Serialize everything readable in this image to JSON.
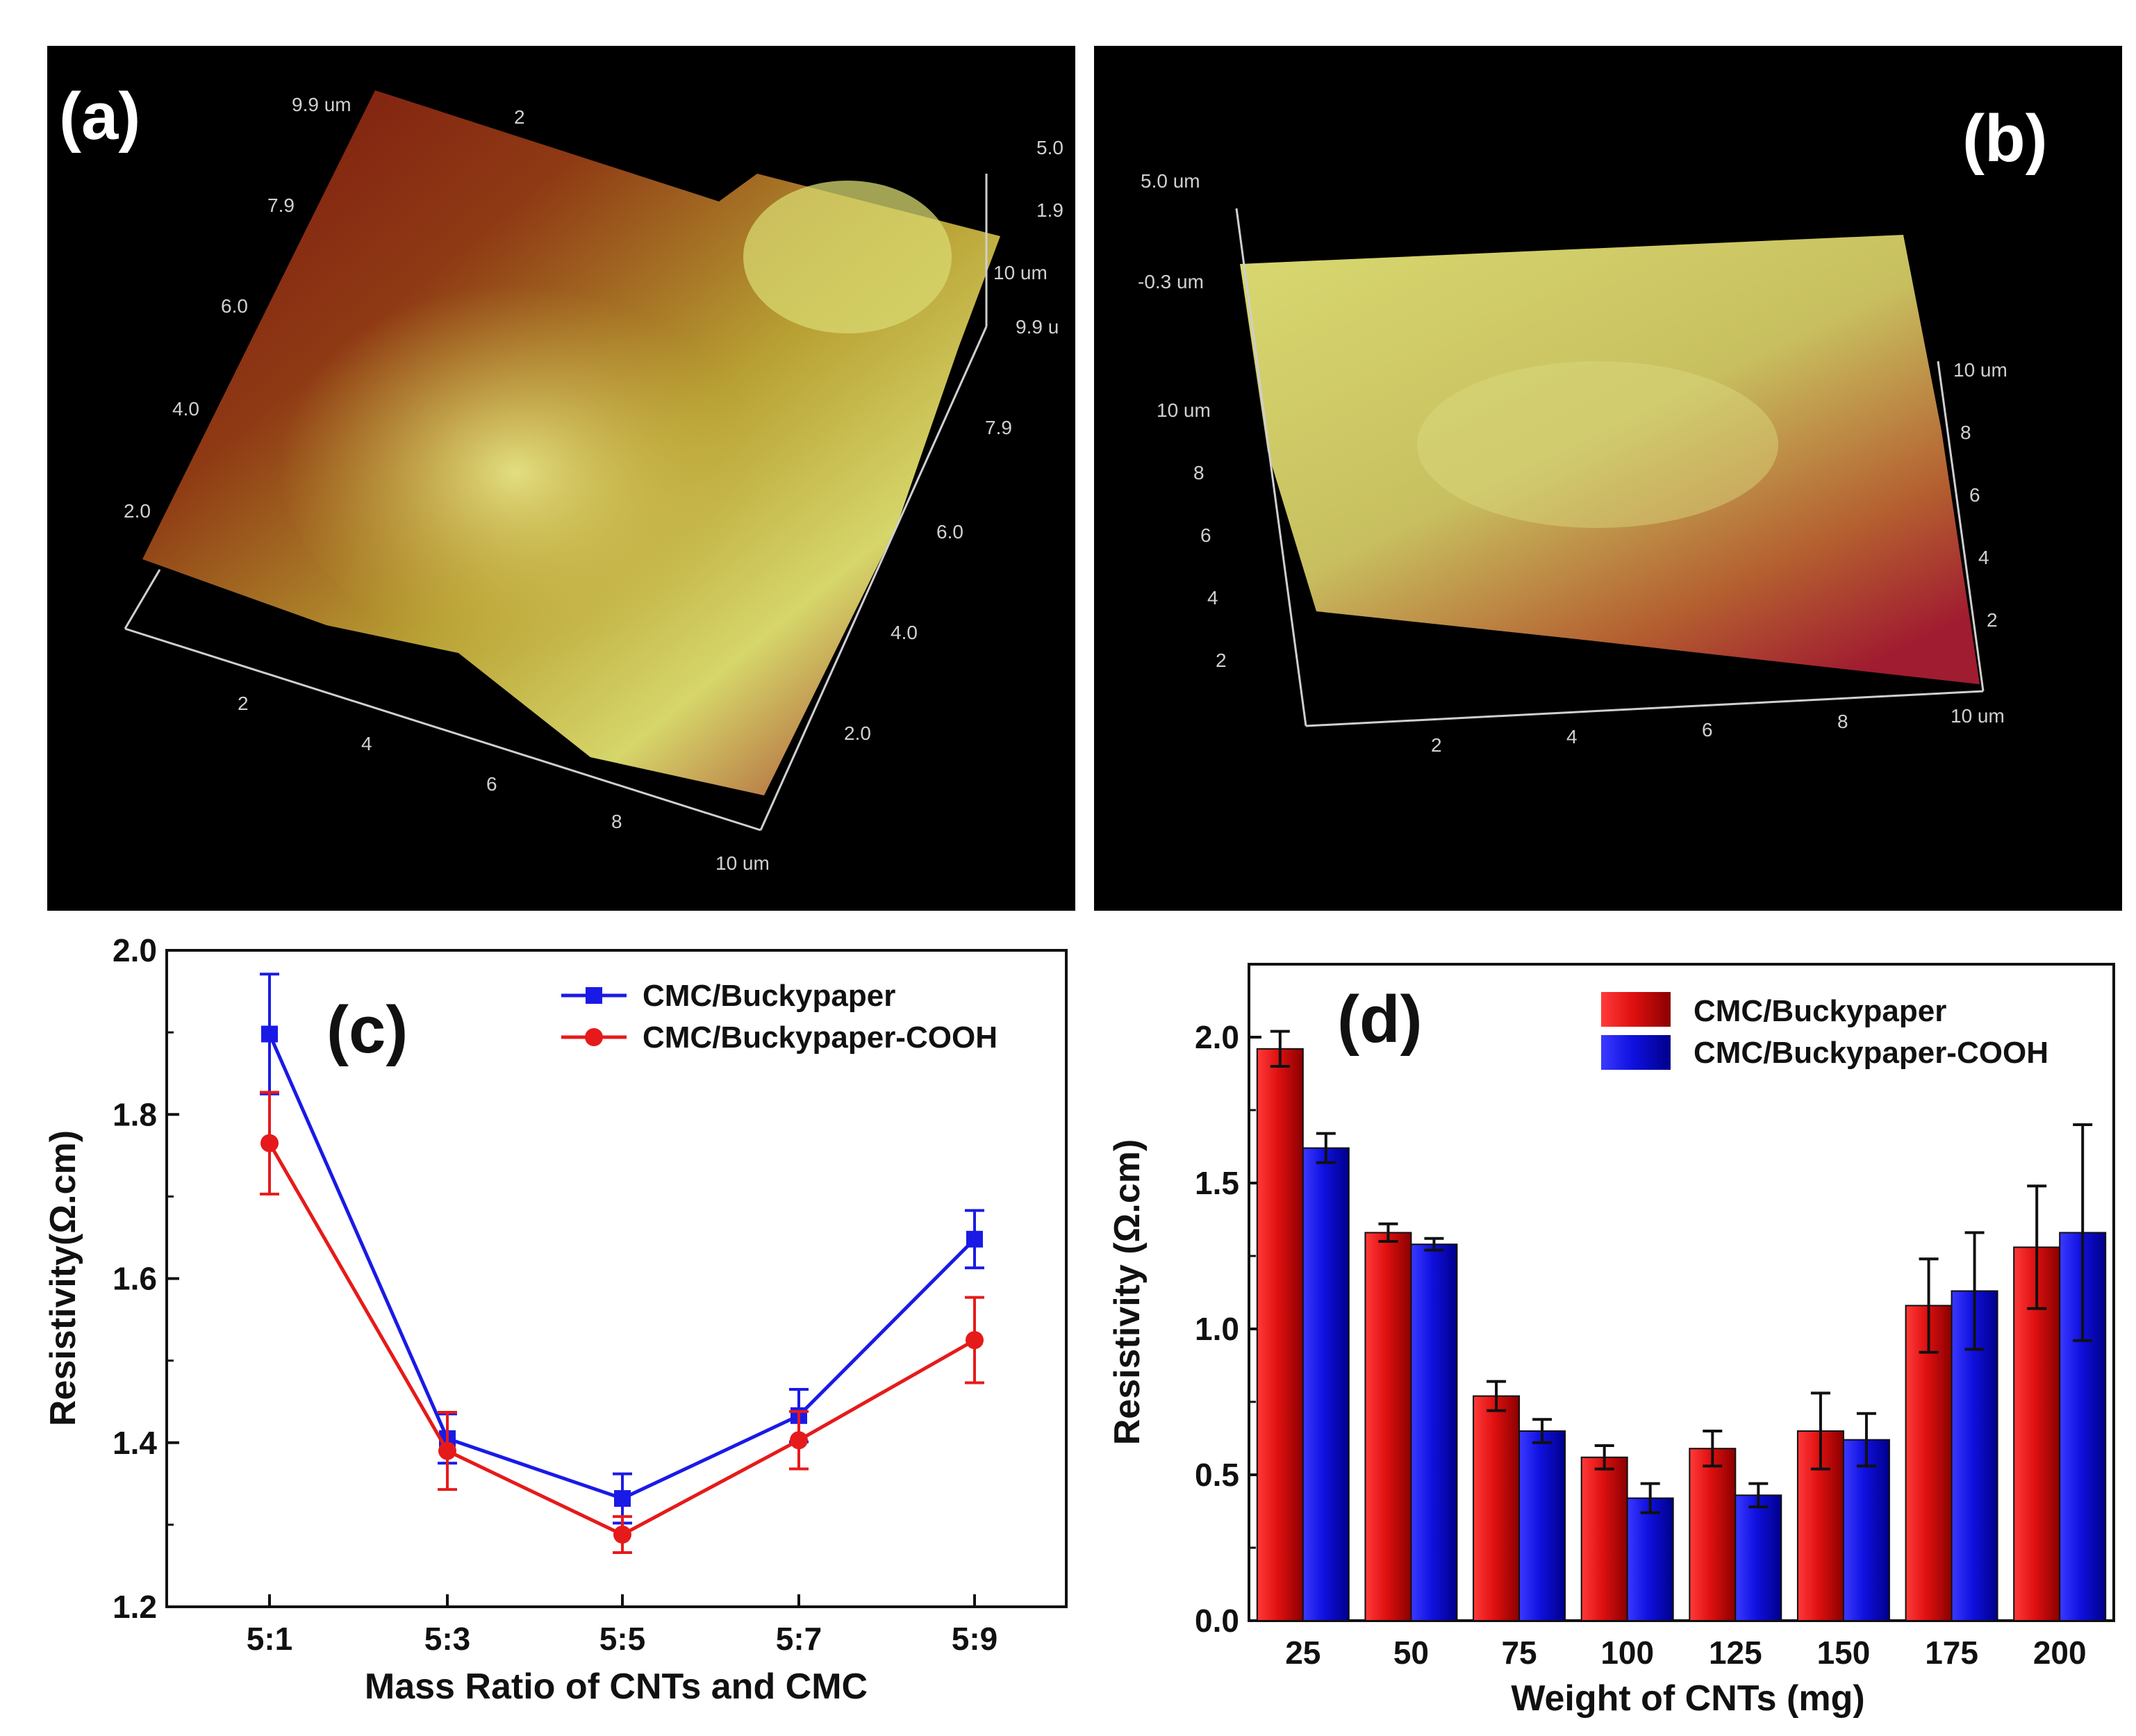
{
  "figure": {
    "panel_a": {
      "label": "(a)",
      "scale_labels": [
        "9.9 um",
        "2",
        "7.9",
        "6.0",
        "4.0",
        "2.0",
        "5.0",
        "1.9",
        "10 um",
        "9.9 u",
        "7.9",
        "6.0",
        "4.0",
        "2.0",
        "2",
        "4",
        "6",
        "8",
        "10 um"
      ]
    },
    "panel_b": {
      "label": "(b)",
      "scale_labels": [
        "5.0 um",
        "-0.3 um",
        "10 um",
        "8",
        "6",
        "4",
        "2",
        "10 um",
        "8",
        "6",
        "4",
        "2",
        "2",
        "4",
        "6",
        "8",
        "10 um"
      ]
    }
  },
  "colors": {
    "blue": "#1a1ae6",
    "red": "#e61a1a",
    "afm_bg": "#000000"
  },
  "chart_data": [
    {
      "panel_label": "(c)",
      "type": "line",
      "categories": [
        "5:1",
        "5:3",
        "5:5",
        "5:7",
        "5:9"
      ],
      "series": [
        {
          "name": "CMC/Buckypaper",
          "marker": "square",
          "values": [
            1.898,
            1.405,
            1.332,
            1.433,
            1.648
          ],
          "errors": [
            0.073,
            0.03,
            0.03,
            0.032,
            0.035
          ]
        },
        {
          "name": "CMC/Buckypaper-COOH",
          "marker": "circle",
          "values": [
            1.765,
            1.39,
            1.288,
            1.403,
            1.525
          ],
          "errors": [
            0.062,
            0.047,
            0.022,
            0.035,
            0.052
          ]
        }
      ],
      "xlabel": "Mass Ratio of  CNTs and CMC",
      "ylabel": "Resistivity(Ω.cm)",
      "ylim": [
        1.2,
        2.0
      ],
      "yticks": [
        "1.2",
        "1.4",
        "1.6",
        "1.8",
        "2.0"
      ],
      "legend": "top-right"
    },
    {
      "panel_label": "(d)",
      "type": "bar",
      "categories": [
        "25",
        "50",
        "75",
        "100",
        "125",
        "150",
        "175",
        "200"
      ],
      "series": [
        {
          "name": "CMC/Buckypaper",
          "values": [
            1.96,
            1.33,
            0.77,
            0.56,
            0.59,
            0.65,
            1.08,
            1.28
          ],
          "errors": [
            0.06,
            0.03,
            0.05,
            0.04,
            0.06,
            0.13,
            0.16,
            0.21
          ]
        },
        {
          "name": "CMC/Buckypaper-COOH",
          "values": [
            1.62,
            1.29,
            0.65,
            0.42,
            0.43,
            0.62,
            1.13,
            1.33
          ],
          "errors": [
            0.05,
            0.02,
            0.04,
            0.05,
            0.04,
            0.09,
            0.2,
            0.37
          ]
        }
      ],
      "xlabel": "Weight of CNTs (mg)",
      "ylabel": "Resistivity (Ω.cm)",
      "ylim": [
        0.0,
        2.25
      ],
      "yticks": [
        "0.0",
        "0.5",
        "1.0",
        "1.5",
        "2.0"
      ],
      "legend": "top-right"
    }
  ]
}
